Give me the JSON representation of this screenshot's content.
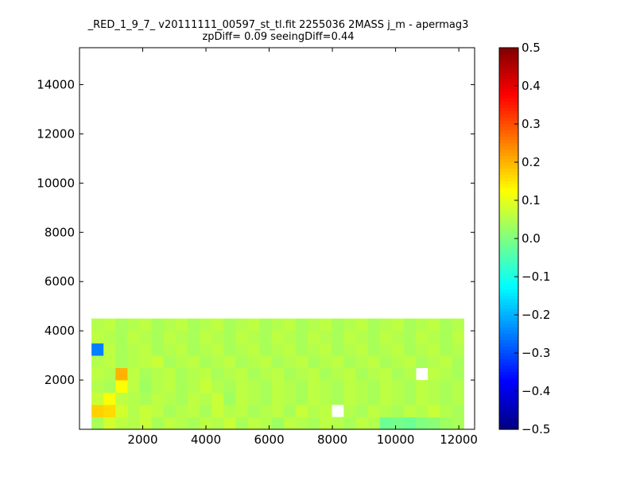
{
  "chart_data": {
    "type": "heatmap",
    "title": [
      "_RED_1_9_7_ v20111111_00597_st_tl.fit 2255036 2MASS j_m - apermag3",
      "zpDiff= 0.09 seeingDiff=0.44"
    ],
    "xlabel": "",
    "ylabel": "",
    "xlim": [
      0,
      12500
    ],
    "ylim": [
      0,
      15500
    ],
    "x_ticks": [
      2000,
      4000,
      6000,
      8000,
      10000,
      12000
    ],
    "y_ticks": [
      2000,
      4000,
      6000,
      8000,
      10000,
      12000,
      14000
    ],
    "colormap": "jet",
    "colorbar": {
      "min": -0.5,
      "max": 0.5,
      "ticks": [
        -0.5,
        -0.4,
        -0.3,
        -0.2,
        -0.1,
        0.0,
        0.1,
        0.2,
        0.3,
        0.4,
        0.5
      ]
    },
    "grid": false,
    "bins": {
      "nx": 33,
      "ny": 31,
      "dx": 380,
      "dy": 500
    },
    "cells": [
      [
        1,
        0,
        0.04
      ],
      [
        2,
        0,
        0.08
      ],
      [
        3,
        0,
        0.06
      ],
      [
        4,
        0,
        0.05
      ],
      [
        5,
        0,
        0.07
      ],
      [
        6,
        0,
        0.04
      ],
      [
        7,
        0,
        0.06
      ],
      [
        8,
        0,
        0.05
      ],
      [
        9,
        0,
        0.04
      ],
      [
        10,
        0,
        0.06
      ],
      [
        11,
        0,
        0.05
      ],
      [
        12,
        0,
        0.07
      ],
      [
        13,
        0,
        0.04
      ],
      [
        14,
        0,
        0.06
      ],
      [
        15,
        0,
        0.05
      ],
      [
        16,
        0,
        0.03
      ],
      [
        17,
        0,
        0.06
      ],
      [
        18,
        0,
        0.05
      ],
      [
        19,
        0,
        0.04
      ],
      [
        20,
        0,
        0.06
      ],
      [
        21,
        0,
        0.05
      ],
      [
        22,
        0,
        0.04
      ],
      [
        23,
        0,
        0.06
      ],
      [
        24,
        0,
        0.05
      ],
      [
        25,
        0,
        -0.02
      ],
      [
        26,
        0,
        -0.01
      ],
      [
        27,
        0,
        -0.02
      ],
      [
        28,
        0,
        0.0
      ],
      [
        29,
        0,
        0.01
      ],
      [
        30,
        0,
        0.03
      ],
      [
        31,
        0,
        0.04
      ],
      [
        1,
        1,
        0.17
      ],
      [
        2,
        1,
        0.16
      ],
      [
        3,
        1,
        0.08
      ],
      [
        4,
        1,
        0.05
      ],
      [
        5,
        1,
        0.07
      ],
      [
        6,
        1,
        0.06
      ],
      [
        7,
        1,
        0.04
      ],
      [
        8,
        1,
        0.05
      ],
      [
        9,
        1,
        0.06
      ],
      [
        10,
        1,
        0.04
      ],
      [
        11,
        1,
        0.07
      ],
      [
        12,
        1,
        0.05
      ],
      [
        13,
        1,
        0.06
      ],
      [
        14,
        1,
        0.04
      ],
      [
        15,
        1,
        0.05
      ],
      [
        16,
        1,
        0.06
      ],
      [
        17,
        1,
        0.04
      ],
      [
        18,
        1,
        0.07
      ],
      [
        19,
        1,
        0.05
      ],
      [
        20,
        1,
        0.06
      ],
      [
        22,
        1,
        0.05
      ],
      [
        23,
        1,
        0.04
      ],
      [
        24,
        1,
        0.06
      ],
      [
        25,
        1,
        0.05
      ],
      [
        26,
        1,
        0.04
      ],
      [
        27,
        1,
        0.06
      ],
      [
        28,
        1,
        0.05
      ],
      [
        29,
        1,
        0.07
      ],
      [
        30,
        1,
        0.05
      ],
      [
        31,
        1,
        0.04
      ],
      [
        1,
        2,
        0.07
      ],
      [
        2,
        2,
        0.12
      ],
      [
        3,
        2,
        0.06
      ],
      [
        4,
        2,
        0.05
      ],
      [
        5,
        2,
        0.04
      ],
      [
        6,
        2,
        0.06
      ],
      [
        7,
        2,
        0.05
      ],
      [
        8,
        2,
        0.04
      ],
      [
        9,
        2,
        0.06
      ],
      [
        10,
        2,
        0.05
      ],
      [
        11,
        2,
        0.07
      ],
      [
        12,
        2,
        0.03
      ],
      [
        13,
        2,
        0.06
      ],
      [
        14,
        2,
        0.05
      ],
      [
        15,
        2,
        0.04
      ],
      [
        16,
        2,
        0.06
      ],
      [
        17,
        2,
        0.05
      ],
      [
        18,
        2,
        0.04
      ],
      [
        19,
        2,
        0.06
      ],
      [
        20,
        2,
        0.05
      ],
      [
        21,
        2,
        0.04
      ],
      [
        22,
        2,
        0.06
      ],
      [
        23,
        2,
        0.05
      ],
      [
        24,
        2,
        0.04
      ],
      [
        25,
        2,
        0.06
      ],
      [
        26,
        2,
        0.05
      ],
      [
        27,
        2,
        0.04
      ],
      [
        28,
        2,
        0.06
      ],
      [
        29,
        2,
        0.05
      ],
      [
        30,
        2,
        0.04
      ],
      [
        31,
        2,
        0.05
      ],
      [
        1,
        3,
        0.05
      ],
      [
        2,
        3,
        0.04
      ],
      [
        3,
        3,
        0.12
      ],
      [
        4,
        3,
        0.06
      ],
      [
        5,
        3,
        0.03
      ],
      [
        6,
        3,
        0.05
      ],
      [
        7,
        3,
        0.06
      ],
      [
        8,
        3,
        0.04
      ],
      [
        9,
        3,
        0.05
      ],
      [
        10,
        3,
        0.07
      ],
      [
        11,
        3,
        0.05
      ],
      [
        12,
        3,
        0.04
      ],
      [
        13,
        3,
        0.06
      ],
      [
        14,
        3,
        0.05
      ],
      [
        15,
        3,
        0.04
      ],
      [
        16,
        3,
        0.06
      ],
      [
        17,
        3,
        0.05
      ],
      [
        18,
        3,
        0.04
      ],
      [
        19,
        3,
        0.06
      ],
      [
        20,
        3,
        0.05
      ],
      [
        21,
        3,
        0.04
      ],
      [
        22,
        3,
        0.06
      ],
      [
        23,
        3,
        0.05
      ],
      [
        24,
        3,
        0.04
      ],
      [
        25,
        3,
        0.06
      ],
      [
        26,
        3,
        0.05
      ],
      [
        27,
        3,
        0.04
      ],
      [
        28,
        3,
        0.06
      ],
      [
        29,
        3,
        0.05
      ],
      [
        30,
        3,
        0.04
      ],
      [
        31,
        3,
        0.05
      ],
      [
        1,
        4,
        0.06
      ],
      [
        2,
        4,
        0.05
      ],
      [
        3,
        4,
        0.2
      ],
      [
        4,
        4,
        0.06
      ],
      [
        5,
        4,
        0.04
      ],
      [
        6,
        4,
        0.05
      ],
      [
        7,
        4,
        0.06
      ],
      [
        8,
        4,
        0.04
      ],
      [
        9,
        4,
        0.05
      ],
      [
        10,
        4,
        0.06
      ],
      [
        11,
        4,
        0.04
      ],
      [
        12,
        4,
        0.05
      ],
      [
        13,
        4,
        0.06
      ],
      [
        14,
        4,
        0.04
      ],
      [
        15,
        4,
        0.05
      ],
      [
        16,
        4,
        0.06
      ],
      [
        17,
        4,
        0.04
      ],
      [
        18,
        4,
        0.05
      ],
      [
        19,
        4,
        0.06
      ],
      [
        20,
        4,
        0.04
      ],
      [
        21,
        4,
        0.05
      ],
      [
        22,
        4,
        0.06
      ],
      [
        23,
        4,
        0.04
      ],
      [
        24,
        4,
        0.05
      ],
      [
        25,
        4,
        0.06
      ],
      [
        26,
        4,
        0.04
      ],
      [
        27,
        4,
        0.05
      ],
      [
        29,
        4,
        0.06
      ],
      [
        30,
        4,
        0.05
      ],
      [
        31,
        4,
        0.04
      ],
      [
        1,
        5,
        0.05
      ],
      [
        2,
        5,
        0.06
      ],
      [
        3,
        5,
        0.04
      ],
      [
        4,
        5,
        0.05
      ],
      [
        5,
        5,
        0.06
      ],
      [
        6,
        5,
        0.07
      ],
      [
        7,
        5,
        0.04
      ],
      [
        8,
        5,
        0.05
      ],
      [
        9,
        5,
        0.06
      ],
      [
        10,
        5,
        0.04
      ],
      [
        11,
        5,
        0.05
      ],
      [
        12,
        5,
        0.06
      ],
      [
        13,
        5,
        0.04
      ],
      [
        14,
        5,
        0.05
      ],
      [
        15,
        5,
        0.06
      ],
      [
        16,
        5,
        0.04
      ],
      [
        17,
        5,
        0.05
      ],
      [
        18,
        5,
        0.06
      ],
      [
        19,
        5,
        0.04
      ],
      [
        20,
        5,
        0.05
      ],
      [
        21,
        5,
        0.06
      ],
      [
        22,
        5,
        0.04
      ],
      [
        23,
        5,
        0.05
      ],
      [
        24,
        5,
        0.06
      ],
      [
        25,
        5,
        0.04
      ],
      [
        26,
        5,
        0.05
      ],
      [
        27,
        5,
        0.06
      ],
      [
        28,
        5,
        0.04
      ],
      [
        29,
        5,
        0.05
      ],
      [
        30,
        5,
        0.06
      ],
      [
        31,
        5,
        0.04
      ],
      [
        1,
        6,
        -0.25
      ],
      [
        2,
        6,
        0.06
      ],
      [
        3,
        6,
        0.04
      ],
      [
        4,
        6,
        0.05
      ],
      [
        5,
        6,
        0.06
      ],
      [
        6,
        6,
        0.04
      ],
      [
        7,
        6,
        0.05
      ],
      [
        8,
        6,
        0.06
      ],
      [
        9,
        6,
        0.04
      ],
      [
        10,
        6,
        0.05
      ],
      [
        11,
        6,
        0.06
      ],
      [
        12,
        6,
        0.04
      ],
      [
        13,
        6,
        0.05
      ],
      [
        14,
        6,
        0.06
      ],
      [
        15,
        6,
        0.04
      ],
      [
        16,
        6,
        0.05
      ],
      [
        17,
        6,
        0.06
      ],
      [
        18,
        6,
        0.04
      ],
      [
        19,
        6,
        0.05
      ],
      [
        20,
        6,
        0.06
      ],
      [
        21,
        6,
        0.04
      ],
      [
        22,
        6,
        0.05
      ],
      [
        23,
        6,
        0.06
      ],
      [
        24,
        6,
        0.04
      ],
      [
        25,
        6,
        0.05
      ],
      [
        26,
        6,
        0.06
      ],
      [
        27,
        6,
        0.04
      ],
      [
        28,
        6,
        0.05
      ],
      [
        29,
        6,
        0.06
      ],
      [
        30,
        6,
        0.04
      ],
      [
        31,
        6,
        0.05
      ],
      [
        1,
        7,
        0.06
      ],
      [
        2,
        7,
        0.05
      ],
      [
        3,
        7,
        0.04
      ],
      [
        4,
        7,
        0.06
      ],
      [
        5,
        7,
        0.05
      ],
      [
        6,
        7,
        0.04
      ],
      [
        7,
        7,
        0.06
      ],
      [
        8,
        7,
        0.05
      ],
      [
        9,
        7,
        0.04
      ],
      [
        10,
        7,
        0.06
      ],
      [
        11,
        7,
        0.05
      ],
      [
        12,
        7,
        0.04
      ],
      [
        13,
        7,
        0.06
      ],
      [
        14,
        7,
        0.05
      ],
      [
        15,
        7,
        0.04
      ],
      [
        16,
        7,
        0.06
      ],
      [
        17,
        7,
        0.05
      ],
      [
        18,
        7,
        0.04
      ],
      [
        19,
        7,
        0.06
      ],
      [
        20,
        7,
        0.05
      ],
      [
        21,
        7,
        0.04
      ],
      [
        22,
        7,
        0.06
      ],
      [
        23,
        7,
        0.05
      ],
      [
        24,
        7,
        0.04
      ],
      [
        25,
        7,
        0.06
      ],
      [
        26,
        7,
        0.05
      ],
      [
        27,
        7,
        0.04
      ],
      [
        28,
        7,
        0.06
      ],
      [
        29,
        7,
        0.05
      ],
      [
        30,
        7,
        0.04
      ],
      [
        31,
        7,
        0.06
      ],
      [
        1,
        8,
        0.05
      ],
      [
        2,
        8,
        0.06
      ],
      [
        3,
        8,
        0.04
      ],
      [
        4,
        8,
        0.05
      ],
      [
        5,
        8,
        0.06
      ],
      [
        6,
        8,
        0.04
      ],
      [
        7,
        8,
        0.05
      ],
      [
        8,
        8,
        0.06
      ],
      [
        9,
        8,
        0.04
      ],
      [
        10,
        8,
        0.05
      ],
      [
        11,
        8,
        0.06
      ],
      [
        12,
        8,
        0.04
      ],
      [
        13,
        8,
        0.05
      ],
      [
        14,
        8,
        0.06
      ],
      [
        15,
        8,
        0.04
      ],
      [
        16,
        8,
        0.05
      ],
      [
        17,
        8,
        0.06
      ],
      [
        18,
        8,
        0.04
      ],
      [
        19,
        8,
        0.05
      ],
      [
        20,
        8,
        0.06
      ],
      [
        21,
        8,
        0.04
      ],
      [
        22,
        8,
        0.05
      ],
      [
        23,
        8,
        0.06
      ],
      [
        24,
        8,
        0.04
      ],
      [
        25,
        8,
        0.05
      ],
      [
        26,
        8,
        0.06
      ],
      [
        27,
        8,
        0.04
      ],
      [
        28,
        8,
        0.05
      ],
      [
        29,
        8,
        0.06
      ],
      [
        30,
        8,
        0.04
      ],
      [
        31,
        8,
        0.05
      ]
    ]
  }
}
